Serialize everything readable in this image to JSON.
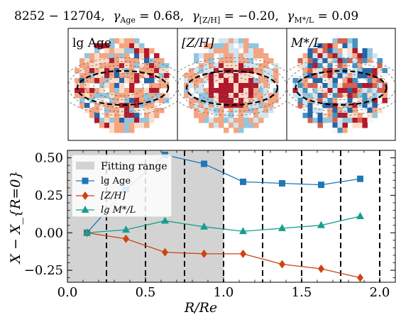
{
  "header": {
    "galaxy_id": "8252 − 12704,",
    "gamma_age": "γ",
    "gamma_age_sub": "Age",
    "gamma_age_val": " = 0.68,",
    "gamma_zh": "γ",
    "gamma_zh_sub": "[Z/H]",
    "gamma_zh_val": " = −0.20,",
    "gamma_ml": "γ",
    "gamma_ml_sub": "M*/L",
    "gamma_ml_val": " = 0.09"
  },
  "maps": [
    {
      "label": "lg Age"
    },
    {
      "label": "[Z/H]"
    },
    {
      "label": "M*/L"
    }
  ],
  "colors": {
    "age": "#1f77b4",
    "zh": "#cc4411",
    "ml": "#169e8e",
    "fit_band": "#d3d3d3",
    "map_red": "#b2182b",
    "map_lightred": "#f4a582",
    "map_blue": "#2166ac",
    "map_lightblue": "#92c5de"
  },
  "chart_data": {
    "type": "line",
    "xlabel": "R/Re",
    "ylabel": "X − X_{R=0}",
    "xlim": [
      0.0,
      2.1
    ],
    "ylim": [
      -0.33,
      0.55
    ],
    "xticks": [
      "0.0",
      "0.5",
      "1.0",
      "1.5",
      "2.0"
    ],
    "yticks": [
      "−0.25",
      "0.00",
      "0.25",
      "0.50"
    ],
    "ytick_values": [
      -0.25,
      0.0,
      0.25,
      0.5
    ],
    "xtick_values": [
      0.0,
      0.5,
      1.0,
      1.5,
      2.0
    ],
    "fitting_range": [
      0.0,
      1.0
    ],
    "vlines": [
      0.25,
      0.5,
      0.75,
      1.0,
      1.25,
      1.5,
      1.75,
      2.0
    ],
    "x": [
      0.125,
      0.375,
      0.625,
      0.875,
      1.125,
      1.375,
      1.625,
      1.875
    ],
    "series": [
      {
        "name": "lg Age",
        "marker": "square",
        "values": [
          0.0,
          0.29,
          0.52,
          0.46,
          0.34,
          0.33,
          0.32,
          0.36
        ]
      },
      {
        "name": "[Z/H]",
        "marker": "diamond",
        "values": [
          0.0,
          -0.04,
          -0.13,
          -0.14,
          -0.14,
          -0.21,
          -0.24,
          -0.3
        ]
      },
      {
        "name": "lg M*/L",
        "marker": "triangle",
        "values": [
          0.0,
          0.02,
          0.08,
          0.04,
          0.01,
          0.03,
          0.05,
          0.11
        ]
      }
    ],
    "legend": {
      "position": "upper-left",
      "fitting_label": "Fitting range",
      "entries": [
        "lg Age",
        "[Z/H]",
        "lg M*/L"
      ]
    }
  }
}
